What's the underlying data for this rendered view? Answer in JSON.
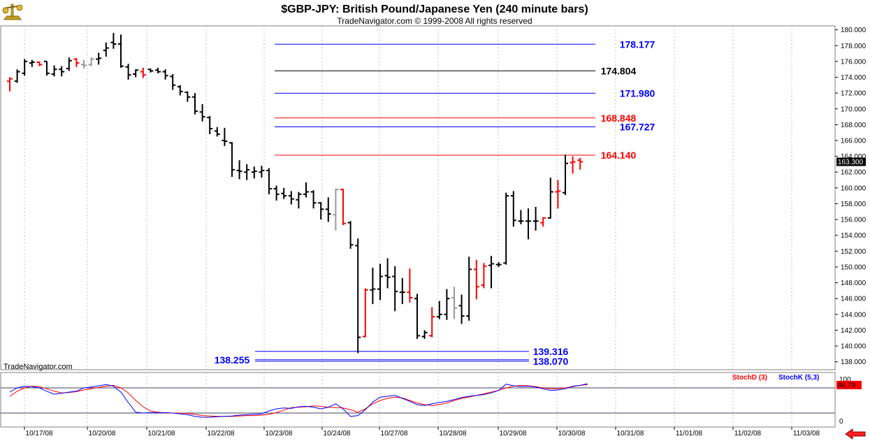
{
  "header": {
    "title": "$GBP-JPY:  British Pound/Japanese Yen  (240 minute bars)",
    "subtitle": "TradeNavigator.com © 1999-2008 All rights reserved",
    "watermark": "TradeNavigator.com",
    "logo_icon": "scales-logo-icon",
    "nav_icon": "red-left-arrow-icon"
  },
  "chart_data": [
    {
      "type": "bar",
      "subtype": "ohlc",
      "ylim": [
        137,
        180.5
      ],
      "y_ticks": [
        "138.000",
        "140.000",
        "142.000",
        "144.000",
        "146.000",
        "148.000",
        "150.000",
        "152.000",
        "154.000",
        "156.000",
        "158.000",
        "160.000",
        "162.000",
        "164.000",
        "166.000",
        "168.000",
        "170.000",
        "172.000",
        "174.000",
        "176.000",
        "178.000",
        "180.000"
      ],
      "x_labels": [
        "10/17/08",
        "10/20/08",
        "10/21/08",
        "10/22/08",
        "10/23/08",
        "10/24/08",
        "10/27/08",
        "10/28/08",
        "10/29/08",
        "10/30/08",
        "10/31/08",
        "11/01/08",
        "11/02/08",
        "11/03/08"
      ],
      "last_price": "163.300",
      "colors": {
        "up": "#000000",
        "down": "#ff0000",
        "neutral": "#999999",
        "blue_level": "#0000ff",
        "red_level": "#ff0000",
        "black_level": "#000000"
      },
      "bars": [
        {
          "o": 173.5,
          "h": 174,
          "l": 172.2,
          "c": 173.8,
          "col": "down"
        },
        {
          "o": 173.5,
          "h": 175,
          "l": 173.3,
          "c": 174.7,
          "col": "up"
        },
        {
          "o": 174.5,
          "h": 176.3,
          "l": 174.2,
          "c": 176,
          "col": "up"
        },
        {
          "o": 175.8,
          "h": 176.2,
          "l": 175.3,
          "c": 175.9,
          "col": "up"
        },
        {
          "o": 175.9,
          "h": 176,
          "l": 175.4,
          "c": 175.6,
          "col": "down"
        },
        {
          "o": 176,
          "h": 176,
          "l": 174.2,
          "c": 174.5,
          "col": "up"
        },
        {
          "o": 174.4,
          "h": 175.5,
          "l": 174.1,
          "c": 175,
          "col": "up"
        },
        {
          "o": 175,
          "h": 175.4,
          "l": 174.1,
          "c": 174.7,
          "col": "up"
        },
        {
          "o": 175.1,
          "h": 176.5,
          "l": 174.8,
          "c": 176.1,
          "col": "up"
        },
        {
          "o": 176.3,
          "h": 176.4,
          "l": 175.3,
          "c": 175.8,
          "col": "down"
        },
        {
          "o": 175.6,
          "h": 176.2,
          "l": 175.1,
          "c": 175.5,
          "col": "neutral"
        },
        {
          "o": 175.6,
          "h": 176.5,
          "l": 175.4,
          "c": 176.3,
          "col": "neutral"
        },
        {
          "o": 176.3,
          "h": 177.1,
          "l": 175.6,
          "c": 176.4,
          "col": "up"
        },
        {
          "o": 177.4,
          "h": 178.4,
          "l": 176.6,
          "c": 177.7,
          "col": "up"
        },
        {
          "o": 178.4,
          "h": 179.6,
          "l": 177.6,
          "c": 178.2,
          "col": "up"
        },
        {
          "o": 178.2,
          "h": 179.4,
          "l": 175.2,
          "c": 175.4,
          "col": "up"
        },
        {
          "o": 175.3,
          "h": 175.7,
          "l": 173.7,
          "c": 174.3,
          "col": "up"
        },
        {
          "o": 174.4,
          "h": 175,
          "l": 174,
          "c": 174.9,
          "col": "up"
        },
        {
          "o": 174.7,
          "h": 175.2,
          "l": 173.9,
          "c": 174.3,
          "col": "down"
        },
        {
          "o": 175,
          "h": 175.1,
          "l": 174.6,
          "c": 174.8,
          "col": "up"
        },
        {
          "o": 174.9,
          "h": 175.2,
          "l": 174.5,
          "c": 174.7,
          "col": "up"
        },
        {
          "o": 174.7,
          "h": 175,
          "l": 173.7,
          "c": 174.2,
          "col": "up"
        },
        {
          "o": 174.1,
          "h": 174.4,
          "l": 172.4,
          "c": 173,
          "col": "up"
        },
        {
          "o": 172.8,
          "h": 173,
          "l": 171.7,
          "c": 172.2,
          "col": "up"
        },
        {
          "o": 172.1,
          "h": 172.2,
          "l": 170.9,
          "c": 171.5,
          "col": "up"
        },
        {
          "o": 171.5,
          "h": 172,
          "l": 169.3,
          "c": 169.7,
          "col": "up"
        },
        {
          "o": 169.6,
          "h": 170.6,
          "l": 168.4,
          "c": 169,
          "col": "up"
        },
        {
          "o": 168.9,
          "h": 169.1,
          "l": 166.8,
          "c": 167.5,
          "col": "up"
        },
        {
          "o": 167.2,
          "h": 167.7,
          "l": 166.5,
          "c": 166.8,
          "col": "up"
        },
        {
          "o": 166,
          "h": 167.6,
          "l": 165.3,
          "c": 165.9,
          "col": "up"
        },
        {
          "o": 165.7,
          "h": 165.8,
          "l": 161.4,
          "c": 162.3,
          "col": "up"
        },
        {
          "o": 162.2,
          "h": 163.5,
          "l": 161.1,
          "c": 162.1,
          "col": "up"
        },
        {
          "o": 162,
          "h": 163,
          "l": 161,
          "c": 162.3,
          "col": "up"
        },
        {
          "o": 162,
          "h": 162.7,
          "l": 161.2,
          "c": 162.1,
          "col": "up"
        },
        {
          "o": 162,
          "h": 162.8,
          "l": 161.3,
          "c": 162.2,
          "col": "up"
        },
        {
          "o": 162.2,
          "h": 162.5,
          "l": 159.2,
          "c": 159.9,
          "col": "up"
        },
        {
          "o": 159.9,
          "h": 160.3,
          "l": 158.4,
          "c": 159.2,
          "col": "up"
        },
        {
          "o": 159.3,
          "h": 160,
          "l": 158.6,
          "c": 159,
          "col": "up"
        },
        {
          "o": 159,
          "h": 159.6,
          "l": 157.9,
          "c": 158.6,
          "col": "up"
        },
        {
          "o": 158.5,
          "h": 159.5,
          "l": 157.4,
          "c": 159.2,
          "col": "up"
        },
        {
          "o": 159.2,
          "h": 160.7,
          "l": 158.8,
          "c": 159.5,
          "col": "up"
        },
        {
          "o": 159.5,
          "h": 159.7,
          "l": 157.4,
          "c": 158.1,
          "col": "up"
        },
        {
          "o": 158.1,
          "h": 158.2,
          "l": 156,
          "c": 157.3,
          "col": "up"
        },
        {
          "o": 157.3,
          "h": 158.8,
          "l": 155.7,
          "c": 156.7,
          "col": "up"
        },
        {
          "o": 156.6,
          "h": 159.9,
          "l": 154.6,
          "c": 159.8,
          "col": "neutral"
        },
        {
          "o": 159.8,
          "h": 159.9,
          "l": 155.3,
          "c": 155.5,
          "col": "down"
        },
        {
          "o": 155.6,
          "h": 155.8,
          "l": 152.3,
          "c": 152.8,
          "col": "up"
        },
        {
          "o": 152.7,
          "h": 153.6,
          "l": 139.1,
          "c": 141.1,
          "col": "up"
        },
        {
          "o": 141.2,
          "h": 147.3,
          "l": 141.1,
          "c": 147.1,
          "col": "down"
        },
        {
          "o": 147.1,
          "h": 149.9,
          "l": 145.3,
          "c": 147.2,
          "col": "up"
        },
        {
          "o": 147.2,
          "h": 150.4,
          "l": 145.8,
          "c": 148.8,
          "col": "up"
        },
        {
          "o": 148.9,
          "h": 151.1,
          "l": 147.3,
          "c": 148.7,
          "col": "up"
        },
        {
          "o": 148.8,
          "h": 150.1,
          "l": 144.4,
          "c": 146.9,
          "col": "up"
        },
        {
          "o": 146.8,
          "h": 148.6,
          "l": 145.3,
          "c": 146.8,
          "col": "up"
        },
        {
          "o": 146.8,
          "h": 149.8,
          "l": 145.5,
          "c": 146.1,
          "col": "down"
        },
        {
          "o": 146,
          "h": 146.6,
          "l": 140.9,
          "c": 141.3,
          "col": "up"
        },
        {
          "o": 141.2,
          "h": 142,
          "l": 140.9,
          "c": 141.7,
          "col": "up"
        },
        {
          "o": 141.3,
          "h": 144.9,
          "l": 141.1,
          "c": 143.7,
          "col": "down"
        },
        {
          "o": 143.7,
          "h": 145.7,
          "l": 143.4,
          "c": 144,
          "col": "up"
        },
        {
          "o": 144,
          "h": 147.2,
          "l": 143.3,
          "c": 146,
          "col": "up"
        },
        {
          "o": 146.1,
          "h": 147.5,
          "l": 143.4,
          "c": 144.8,
          "col": "neutral"
        },
        {
          "o": 145.1,
          "h": 146.5,
          "l": 142.8,
          "c": 143.8,
          "col": "up"
        },
        {
          "o": 143.8,
          "h": 151.3,
          "l": 143.2,
          "c": 149.7,
          "col": "up"
        },
        {
          "o": 149.7,
          "h": 150.9,
          "l": 145.9,
          "c": 147.5,
          "col": "down"
        },
        {
          "o": 147.7,
          "h": 150.5,
          "l": 147.3,
          "c": 150.1,
          "col": "down"
        },
        {
          "o": 150.2,
          "h": 151.4,
          "l": 147.3,
          "c": 150.4,
          "col": "up"
        },
        {
          "o": 150.3,
          "h": 150.6,
          "l": 150,
          "c": 150.3,
          "col": "up"
        },
        {
          "o": 150.5,
          "h": 159.4,
          "l": 150.3,
          "c": 159,
          "col": "up"
        },
        {
          "o": 159,
          "h": 159.6,
          "l": 155.1,
          "c": 155.9,
          "col": "up"
        },
        {
          "o": 155.8,
          "h": 157.2,
          "l": 155.4,
          "c": 155.8,
          "col": "up"
        },
        {
          "o": 155.8,
          "h": 157.4,
          "l": 153.5,
          "c": 155.8,
          "col": "up"
        },
        {
          "o": 155.8,
          "h": 157.6,
          "l": 154.6,
          "c": 155.8,
          "col": "up"
        },
        {
          "o": 155.6,
          "h": 156.3,
          "l": 155.1,
          "c": 156.2,
          "col": "down"
        },
        {
          "o": 156.2,
          "h": 161.3,
          "l": 156.1,
          "c": 159.5,
          "col": "up"
        },
        {
          "o": 159.5,
          "h": 161,
          "l": 157.4,
          "c": 159.6,
          "col": "down"
        },
        {
          "o": 159.4,
          "h": 164.2,
          "l": 159.1,
          "c": 163.1,
          "col": "up"
        },
        {
          "o": 163.2,
          "h": 164,
          "l": 161.8,
          "c": 163.3,
          "col": "down"
        },
        {
          "o": 163.5,
          "h": 163.8,
          "l": 162.3,
          "c": 163.3,
          "col": "down"
        }
      ],
      "levels": [
        {
          "value": 178.177,
          "label": "178.177",
          "color": "blue"
        },
        {
          "value": 174.804,
          "label": "174.804",
          "color": "black"
        },
        {
          "value": 171.98,
          "label": "171.980",
          "color": "blue"
        },
        {
          "value": 168.848,
          "label": "168.848",
          "color": "red"
        },
        {
          "value": 167.727,
          "label": "167.727",
          "color": "blue"
        },
        {
          "value": 164.14,
          "label": "164.140",
          "color": "red"
        },
        {
          "value": 139.316,
          "label": "139.316",
          "color": "blue"
        },
        {
          "value": 138.255,
          "label": "138.255",
          "color": "blue",
          "label_side": "left"
        },
        {
          "value": 138.07,
          "label": "138.070",
          "color": "blue"
        }
      ]
    },
    {
      "type": "line",
      "ylim": [
        0,
        100
      ],
      "y_tick_top": "100",
      "y_tick_bottom": "0",
      "reference_lines": [
        80,
        20
      ],
      "last_value": "86.79",
      "series": [
        {
          "name": "StochD (3)",
          "color": "#ff0000",
          "values": [
            60,
            72,
            80,
            84,
            83,
            78,
            72,
            68,
            69,
            71,
            75,
            78,
            81,
            84,
            86,
            80,
            68,
            50,
            35,
            25,
            22,
            20,
            20,
            20,
            19,
            17,
            14,
            13,
            12,
            12,
            12,
            13,
            14,
            14,
            15,
            17,
            21,
            27,
            33,
            34,
            35,
            37,
            36,
            34,
            33,
            32,
            28,
            22,
            30,
            42,
            50,
            55,
            58,
            56,
            50,
            44,
            40,
            38,
            40,
            44,
            50,
            55,
            58,
            62,
            66,
            70,
            74,
            80,
            84,
            86,
            85,
            83,
            80,
            78,
            78,
            80,
            83,
            86,
            88
          ]
        },
        {
          "name": "StochK (5,3)",
          "color": "#0000ff",
          "values": [
            70,
            80,
            84,
            83,
            80,
            72,
            65,
            67,
            70,
            72,
            80,
            82,
            85,
            88,
            84,
            70,
            45,
            22,
            20,
            21,
            21,
            21,
            20,
            18,
            16,
            12,
            10,
            10,
            11,
            12,
            13,
            15,
            16,
            17,
            18,
            25,
            30,
            32,
            31,
            35,
            36,
            34,
            30,
            34,
            42,
            30,
            12,
            14,
            28,
            46,
            58,
            60,
            62,
            55,
            48,
            40,
            38,
            42,
            45,
            48,
            52,
            57,
            60,
            62,
            64,
            68,
            74,
            89,
            85,
            83,
            84,
            82,
            78,
            74,
            75,
            78,
            84,
            86,
            90
          ]
        }
      ]
    }
  ]
}
